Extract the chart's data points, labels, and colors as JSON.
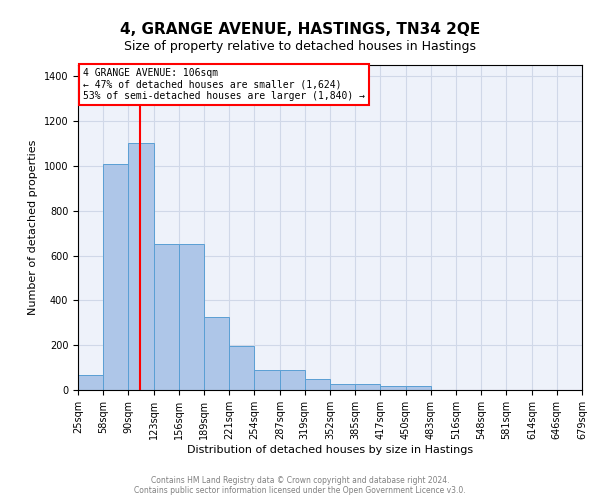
{
  "title": "4, GRANGE AVENUE, HASTINGS, TN34 2QE",
  "subtitle": "Size of property relative to detached houses in Hastings",
  "xlabel": "Distribution of detached houses by size in Hastings",
  "ylabel": "Number of detached properties",
  "bar_color": "#aec6e8",
  "bar_edge_color": "#5a9fd4",
  "red_line_x": 106,
  "annotation_line1": "4 GRANGE AVENUE: 106sqm",
  "annotation_line2": "← 47% of detached houses are smaller (1,624)",
  "annotation_line3": "53% of semi-detached houses are larger (1,840) →",
  "footer_line1": "Contains HM Land Registry data © Crown copyright and database right 2024.",
  "footer_line2": "Contains public sector information licensed under the Open Government Licence v3.0.",
  "bin_edges": [
    25,
    58,
    90,
    123,
    156,
    189,
    221,
    254,
    287,
    319,
    352,
    385,
    417,
    450,
    483,
    516,
    548,
    581,
    614,
    646,
    679
  ],
  "bin_labels": [
    "25sqm",
    "58sqm",
    "90sqm",
    "123sqm",
    "156sqm",
    "189sqm",
    "221sqm",
    "254sqm",
    "287sqm",
    "319sqm",
    "352sqm",
    "385sqm",
    "417sqm",
    "450sqm",
    "483sqm",
    "516sqm",
    "548sqm",
    "581sqm",
    "614sqm",
    "646sqm",
    "679sqm"
  ],
  "counts": [
    65,
    1010,
    1100,
    650,
    650,
    325,
    195,
    90,
    90,
    50,
    25,
    25,
    20,
    20,
    0,
    0,
    0,
    0,
    0,
    0
  ],
  "ylim": [
    0,
    1450
  ],
  "yticks": [
    0,
    200,
    400,
    600,
    800,
    1000,
    1200,
    1400
  ],
  "background_color": "#eef2fa",
  "grid_color": "#d0d8e8",
  "title_fontsize": 11,
  "subtitle_fontsize": 9,
  "annotation_box_color": "white",
  "annotation_box_edge_color": "red",
  "footer_fontsize": 5.5,
  "ylabel_fontsize": 8,
  "xlabel_fontsize": 8,
  "tick_fontsize": 7,
  "annotation_fontsize": 7
}
